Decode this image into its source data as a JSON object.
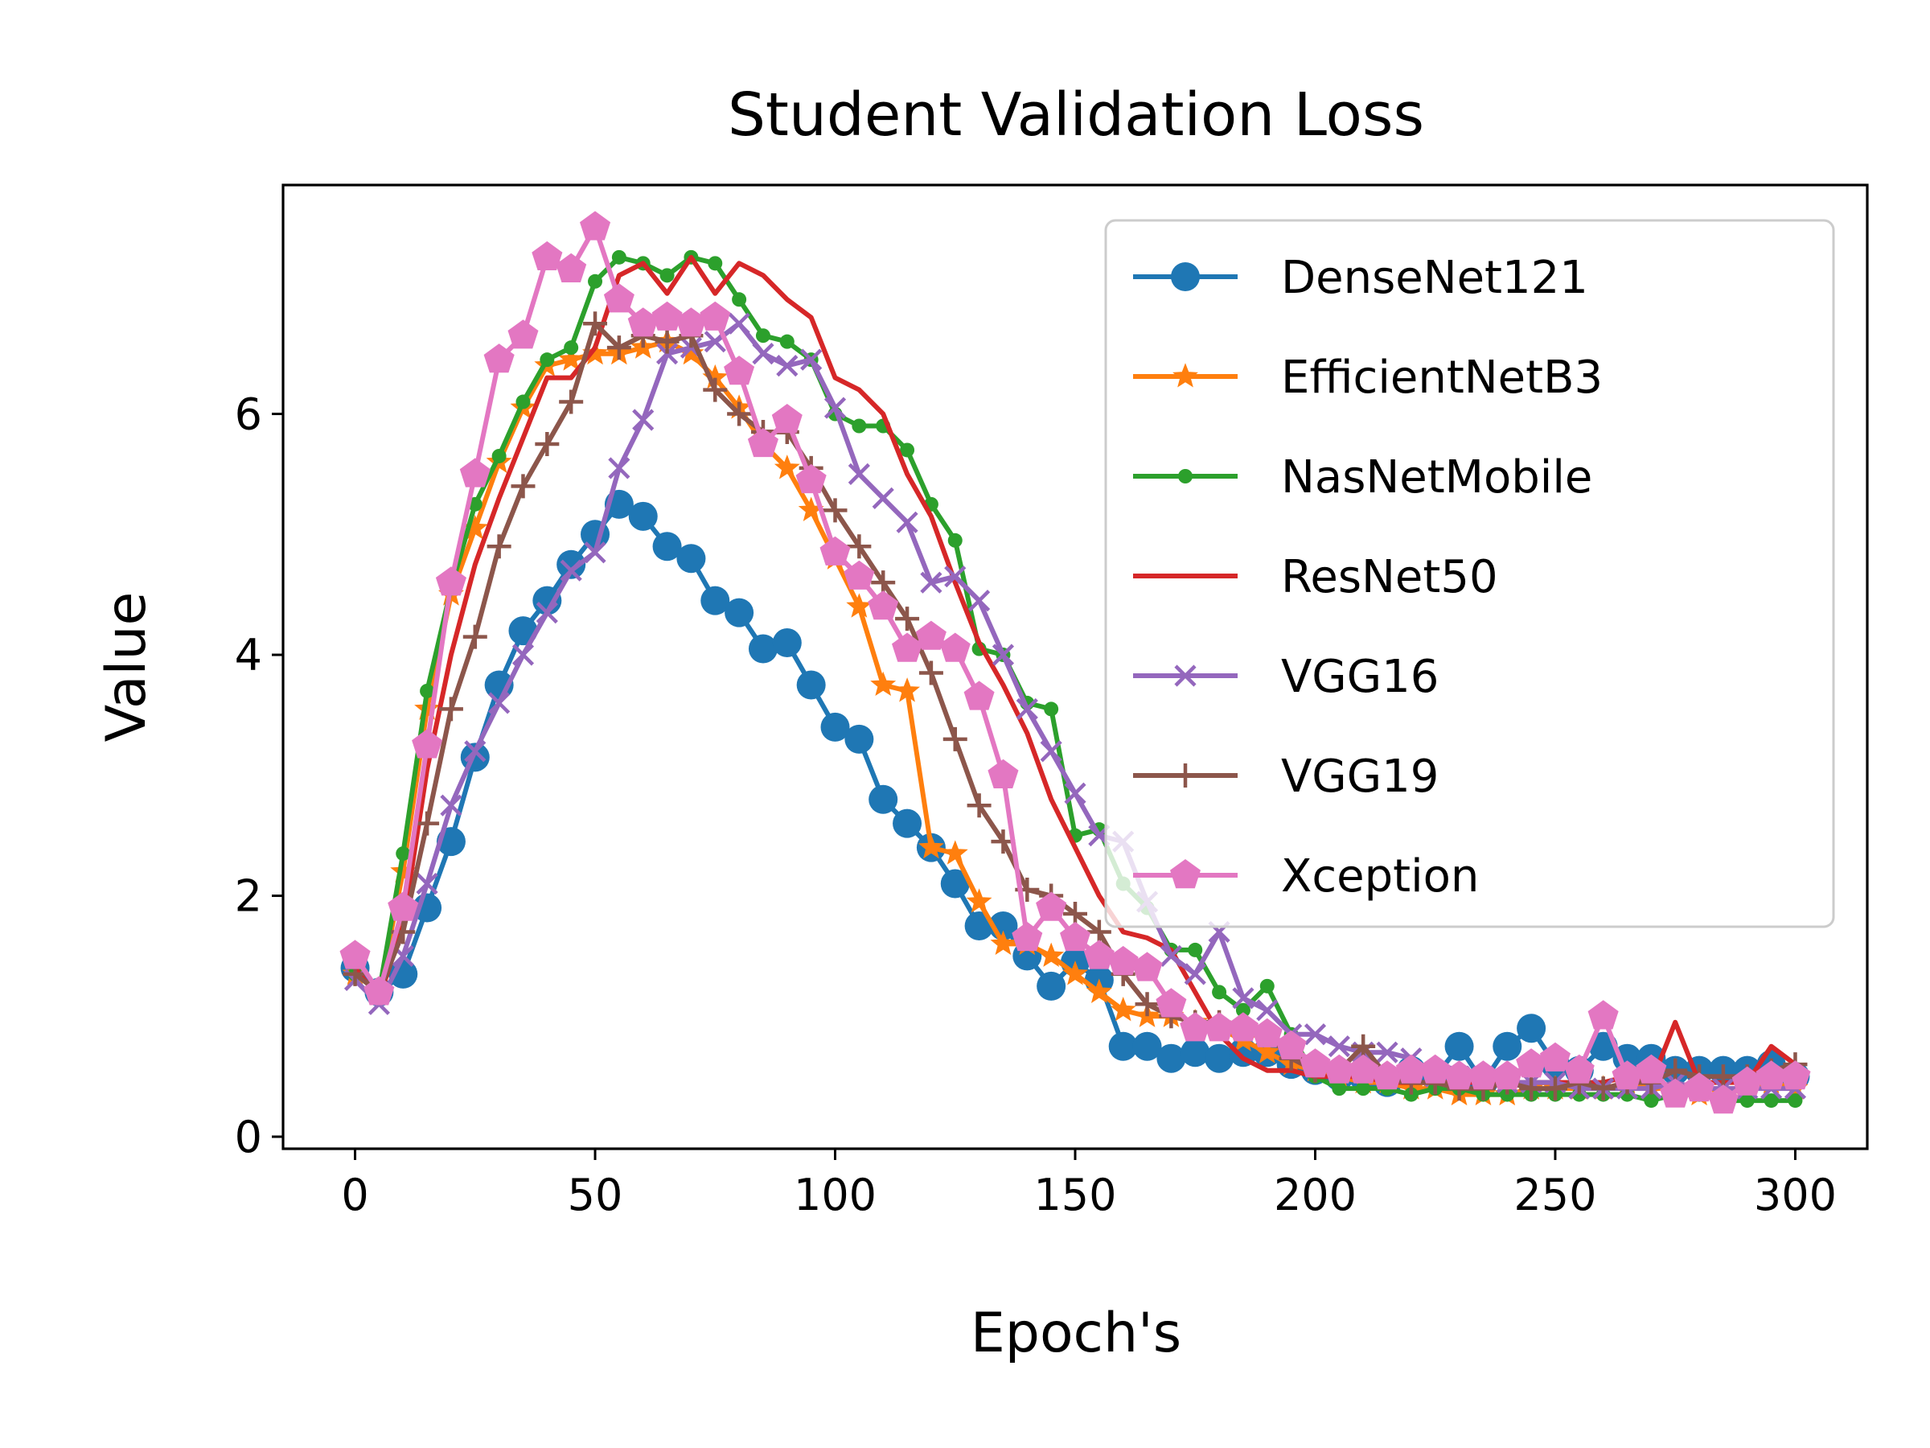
{
  "chart_data": {
    "type": "line",
    "title": "Student Validation Loss",
    "xlabel": "Epoch's",
    "ylabel": "Value",
    "xlim": [
      -15,
      315
    ],
    "ylim": [
      -0.1,
      7.9
    ],
    "xticks": [
      0,
      50,
      100,
      150,
      200,
      250,
      300
    ],
    "yticks": [
      0,
      2,
      4,
      6
    ],
    "grid": false,
    "legend_position": "top-right",
    "series": [
      {
        "name": "DenseNet121",
        "color": "#1f77b4",
        "marker": "circle",
        "x": [
          0,
          5,
          10,
          15,
          20,
          25,
          30,
          35,
          40,
          45,
          50,
          55,
          60,
          65,
          70,
          75,
          80,
          85,
          90,
          95,
          100,
          105,
          110,
          115,
          120,
          125,
          130,
          135,
          140,
          145,
          150,
          155,
          160,
          165,
          170,
          175,
          180,
          185,
          190,
          195,
          200,
          205,
          210,
          215,
          220,
          225,
          230,
          235,
          240,
          245,
          250,
          255,
          260,
          265,
          270,
          275,
          280,
          285,
          290,
          295,
          300
        ],
        "values": [
          1.4,
          1.2,
          1.35,
          1.9,
          2.45,
          3.15,
          3.75,
          4.2,
          4.45,
          4.75,
          5.0,
          5.25,
          5.15,
          4.9,
          4.8,
          4.45,
          4.35,
          4.05,
          4.1,
          3.75,
          3.4,
          3.3,
          2.8,
          2.6,
          2.4,
          2.1,
          1.75,
          1.75,
          1.5,
          1.25,
          1.45,
          1.3,
          0.75,
          0.75,
          0.65,
          0.7,
          0.65,
          0.7,
          0.7,
          0.6,
          0.55,
          0.5,
          0.5,
          0.45,
          0.55,
          0.5,
          0.75,
          0.45,
          0.75,
          0.9,
          0.6,
          0.55,
          0.75,
          0.65,
          0.65,
          0.55,
          0.55,
          0.55,
          0.55,
          0.6,
          0.5
        ]
      },
      {
        "name": "EfficientNetB3",
        "color": "#ff7f0e",
        "marker": "star",
        "x": [
          0,
          5,
          10,
          15,
          20,
          25,
          30,
          35,
          40,
          45,
          50,
          55,
          60,
          65,
          70,
          75,
          80,
          85,
          90,
          95,
          100,
          105,
          110,
          115,
          120,
          125,
          130,
          135,
          140,
          145,
          150,
          155,
          160,
          165,
          170,
          175,
          180,
          185,
          190,
          195,
          200,
          205,
          210,
          215,
          220,
          225,
          230,
          235,
          240,
          245,
          250,
          255,
          260,
          265,
          270,
          275,
          280,
          285,
          290,
          295,
          300
        ],
        "values": [
          1.35,
          1.2,
          2.2,
          3.55,
          4.5,
          5.05,
          5.6,
          6.05,
          6.4,
          6.45,
          6.5,
          6.5,
          6.55,
          6.6,
          6.5,
          6.3,
          6.05,
          5.75,
          5.55,
          5.2,
          4.8,
          4.4,
          3.75,
          3.7,
          2.4,
          2.35,
          1.95,
          1.6,
          1.6,
          1.5,
          1.35,
          1.2,
          1.05,
          1.0,
          1.0,
          0.95,
          0.9,
          0.8,
          0.7,
          0.6,
          0.55,
          0.5,
          0.45,
          0.45,
          0.4,
          0.4,
          0.35,
          0.35,
          0.35,
          0.4,
          0.4,
          0.4,
          0.4,
          0.45,
          0.4,
          0.4,
          0.35,
          0.35,
          0.4,
          0.45,
          0.4
        ]
      },
      {
        "name": "NasNetMobile",
        "color": "#2ca02c",
        "marker": "point",
        "x": [
          0,
          5,
          10,
          15,
          20,
          25,
          30,
          35,
          40,
          45,
          50,
          55,
          60,
          65,
          70,
          75,
          80,
          85,
          90,
          95,
          100,
          105,
          110,
          115,
          120,
          125,
          130,
          135,
          140,
          145,
          150,
          155,
          160,
          165,
          170,
          175,
          180,
          185,
          190,
          195,
          200,
          205,
          210,
          215,
          220,
          225,
          230,
          235,
          240,
          245,
          250,
          255,
          260,
          265,
          270,
          275,
          280,
          285,
          290,
          295,
          300
        ],
        "values": [
          1.35,
          1.2,
          2.35,
          3.7,
          4.55,
          5.25,
          5.65,
          6.1,
          6.45,
          6.55,
          7.1,
          7.3,
          7.25,
          7.15,
          7.3,
          7.25,
          6.95,
          6.65,
          6.6,
          6.45,
          6.0,
          5.9,
          5.9,
          5.7,
          5.25,
          4.95,
          4.05,
          4.0,
          3.6,
          3.55,
          2.5,
          2.55,
          2.1,
          1.9,
          1.55,
          1.55,
          1.2,
          1.05,
          1.25,
          0.85,
          0.5,
          0.4,
          0.4,
          0.4,
          0.35,
          0.4,
          0.4,
          0.35,
          0.35,
          0.35,
          0.35,
          0.35,
          0.35,
          0.35,
          0.3,
          0.35,
          0.35,
          0.3,
          0.3,
          0.3,
          0.3
        ]
      },
      {
        "name": "ResNet50",
        "color": "#d62728",
        "marker": "none",
        "x": [
          0,
          5,
          10,
          15,
          20,
          25,
          30,
          35,
          40,
          45,
          50,
          55,
          60,
          65,
          70,
          75,
          80,
          85,
          90,
          95,
          100,
          105,
          110,
          115,
          120,
          125,
          130,
          135,
          140,
          145,
          150,
          155,
          160,
          165,
          170,
          175,
          180,
          185,
          190,
          195,
          200,
          205,
          210,
          215,
          220,
          225,
          230,
          235,
          240,
          245,
          250,
          255,
          260,
          265,
          270,
          275,
          280,
          285,
          290,
          295,
          300
        ],
        "values": [
          1.4,
          1.15,
          1.75,
          3.05,
          4.0,
          4.75,
          5.3,
          5.8,
          6.3,
          6.3,
          6.55,
          7.15,
          7.25,
          7.0,
          7.3,
          7.0,
          7.25,
          7.15,
          6.95,
          6.8,
          6.3,
          6.2,
          6.0,
          5.5,
          5.15,
          4.6,
          4.1,
          3.75,
          3.35,
          2.8,
          2.4,
          2.0,
          1.7,
          1.65,
          1.55,
          1.2,
          0.85,
          0.65,
          0.55,
          0.55,
          0.5,
          0.5,
          0.5,
          0.45,
          0.45,
          0.45,
          0.45,
          0.45,
          0.45,
          0.45,
          0.45,
          0.45,
          0.45,
          0.5,
          0.45,
          0.95,
          0.45,
          0.45,
          0.45,
          0.75,
          0.6
        ]
      },
      {
        "name": "VGG16",
        "color": "#9467bd",
        "marker": "x",
        "x": [
          0,
          5,
          10,
          15,
          20,
          25,
          30,
          35,
          40,
          45,
          50,
          55,
          60,
          65,
          70,
          75,
          80,
          85,
          90,
          95,
          100,
          105,
          110,
          115,
          120,
          125,
          130,
          135,
          140,
          145,
          150,
          155,
          160,
          165,
          170,
          175,
          180,
          185,
          190,
          195,
          200,
          205,
          210,
          215,
          220,
          225,
          230,
          235,
          240,
          245,
          250,
          255,
          260,
          265,
          270,
          275,
          280,
          285,
          290,
          295,
          300
        ],
        "values": [
          1.3,
          1.1,
          1.5,
          2.1,
          2.75,
          3.2,
          3.6,
          4.0,
          4.35,
          4.7,
          4.85,
          5.55,
          5.95,
          6.5,
          6.55,
          6.6,
          6.75,
          6.5,
          6.4,
          6.45,
          6.05,
          5.5,
          5.3,
          5.1,
          4.6,
          4.65,
          4.45,
          4.0,
          3.55,
          3.2,
          2.85,
          2.5,
          2.45,
          1.95,
          1.5,
          1.35,
          1.7,
          1.15,
          1.05,
          0.85,
          0.85,
          0.75,
          0.7,
          0.7,
          0.65,
          0.5,
          0.5,
          0.5,
          0.45,
          0.45,
          0.45,
          0.4,
          0.4,
          0.4,
          0.4,
          0.45,
          0.4,
          0.4,
          0.4,
          0.4,
          0.4
        ]
      },
      {
        "name": "VGG19",
        "color": "#8c564b",
        "marker": "plus",
        "x": [
          0,
          5,
          10,
          15,
          20,
          25,
          30,
          35,
          40,
          45,
          50,
          55,
          60,
          65,
          70,
          75,
          80,
          85,
          90,
          95,
          100,
          105,
          110,
          115,
          120,
          125,
          130,
          135,
          140,
          145,
          150,
          155,
          160,
          165,
          170,
          175,
          180,
          185,
          190,
          195,
          200,
          205,
          210,
          215,
          220,
          225,
          230,
          235,
          240,
          245,
          250,
          255,
          260,
          265,
          270,
          275,
          280,
          285,
          290,
          295,
          300
        ],
        "values": [
          1.35,
          1.2,
          1.7,
          2.6,
          3.55,
          4.15,
          4.9,
          5.4,
          5.75,
          6.1,
          6.75,
          6.55,
          6.65,
          6.6,
          6.65,
          6.2,
          6.0,
          5.85,
          5.85,
          5.55,
          5.2,
          4.9,
          4.6,
          4.3,
          3.85,
          3.3,
          2.75,
          2.45,
          2.05,
          2.0,
          1.85,
          1.7,
          1.35,
          1.1,
          1.0,
          0.95,
          0.95,
          0.9,
          0.85,
          0.65,
          0.55,
          0.55,
          0.75,
          0.5,
          0.45,
          0.45,
          0.4,
          0.4,
          0.45,
          0.4,
          0.4,
          0.45,
          0.4,
          0.45,
          0.45,
          0.55,
          0.5,
          0.5,
          0.5,
          0.55,
          0.6
        ]
      },
      {
        "name": "Xception",
        "color": "#e377c2",
        "marker": "pentagon",
        "x": [
          0,
          5,
          10,
          15,
          20,
          25,
          30,
          35,
          40,
          45,
          50,
          55,
          60,
          65,
          70,
          75,
          80,
          85,
          90,
          95,
          100,
          105,
          110,
          115,
          120,
          125,
          130,
          135,
          140,
          145,
          150,
          155,
          160,
          165,
          170,
          175,
          180,
          185,
          190,
          195,
          200,
          205,
          210,
          215,
          220,
          225,
          230,
          235,
          240,
          245,
          250,
          255,
          260,
          265,
          270,
          275,
          280,
          285,
          290,
          295,
          300
        ],
        "values": [
          1.5,
          1.2,
          1.9,
          3.25,
          4.6,
          5.5,
          6.45,
          6.65,
          7.3,
          7.2,
          7.55,
          6.95,
          6.75,
          6.8,
          6.75,
          6.8,
          6.35,
          5.75,
          5.95,
          5.45,
          4.85,
          4.65,
          4.4,
          4.05,
          4.15,
          4.05,
          3.65,
          3.0,
          1.65,
          1.9,
          1.65,
          1.5,
          1.45,
          1.4,
          1.1,
          0.9,
          0.9,
          0.9,
          0.85,
          0.75,
          0.6,
          0.55,
          0.55,
          0.5,
          0.55,
          0.55,
          0.5,
          0.5,
          0.5,
          0.6,
          0.65,
          0.55,
          1.0,
          0.5,
          0.55,
          0.35,
          0.4,
          0.3,
          0.45,
          0.5,
          0.5
        ]
      }
    ]
  }
}
